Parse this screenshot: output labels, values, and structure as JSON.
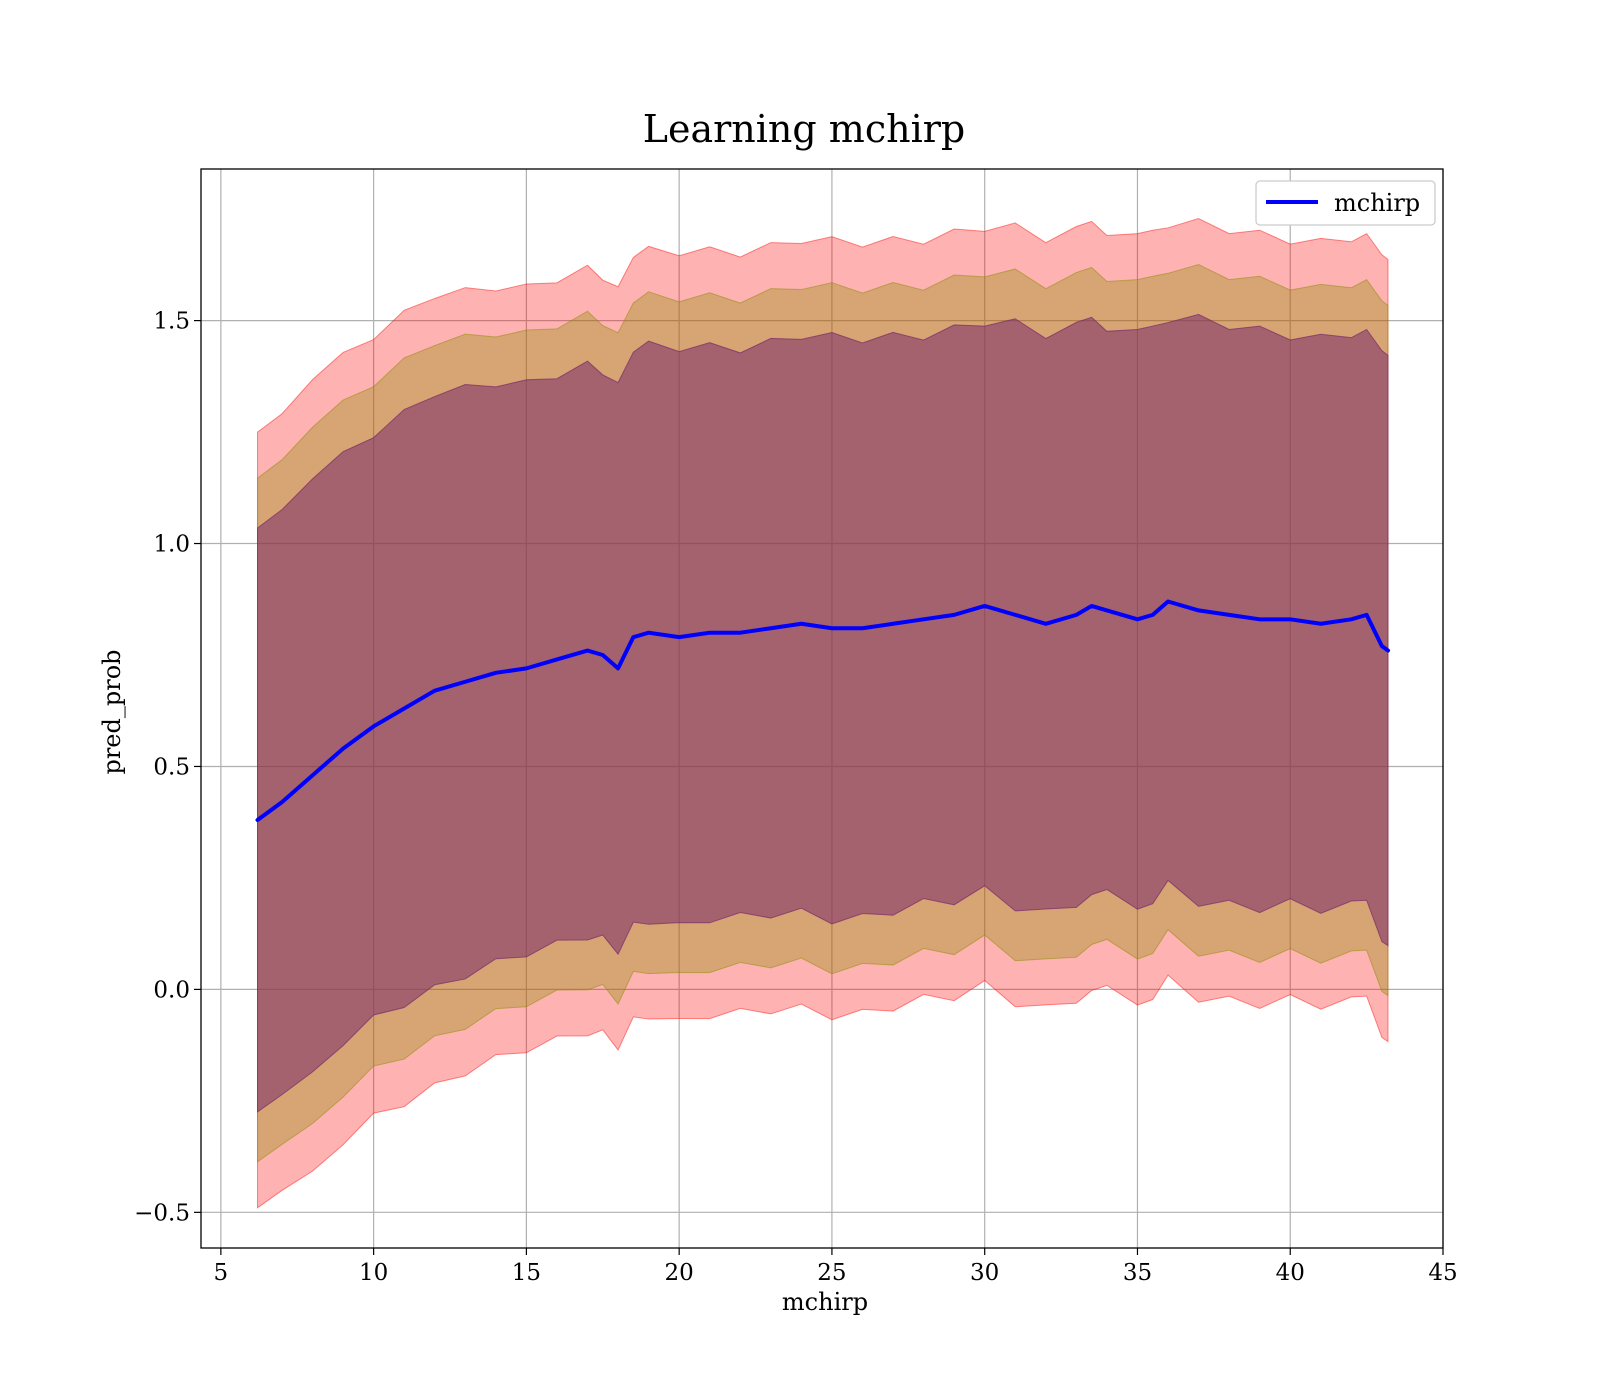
{
  "chart_data": {
    "type": "line",
    "title": "Learning mchirp",
    "xlabel": "mchirp",
    "ylabel": "pred_prob",
    "xlim": [
      4.35,
      45
    ],
    "ylim": [
      -0.58,
      1.84
    ],
    "xticks": [
      5,
      10,
      15,
      20,
      25,
      30,
      35,
      40,
      45
    ],
    "xtick_labels": [
      "5",
      "10",
      "15",
      "20",
      "25",
      "30",
      "35",
      "40",
      "45"
    ],
    "yticks": [
      -0.5,
      0.0,
      0.5,
      1.0,
      1.5
    ],
    "ytick_labels": [
      "−0.5",
      "0.0",
      "0.5",
      "1.0",
      "1.5"
    ],
    "grid": true,
    "legend": {
      "position": "upper right",
      "entries": [
        "mchirp"
      ]
    },
    "x": [
      6.2,
      7,
      8,
      9,
      10,
      11,
      12,
      13,
      14,
      15,
      16,
      17,
      17.5,
      18,
      18.5,
      19,
      20,
      21,
      22,
      23,
      24,
      25,
      26,
      27,
      28,
      29,
      30,
      31,
      32,
      33,
      33.5,
      34,
      35,
      35.5,
      36,
      37,
      38,
      39,
      40,
      41,
      42,
      42.5,
      43,
      43.2
    ],
    "series": [
      {
        "name": "mchirp",
        "color": "#0000ff",
        "values": [
          0.38,
          0.42,
          0.48,
          0.54,
          0.59,
          0.63,
          0.67,
          0.69,
          0.71,
          0.72,
          0.74,
          0.76,
          0.75,
          0.72,
          0.79,
          0.8,
          0.79,
          0.8,
          0.8,
          0.81,
          0.82,
          0.81,
          0.81,
          0.82,
          0.83,
          0.84,
          0.86,
          0.84,
          0.82,
          0.84,
          0.86,
          0.85,
          0.83,
          0.84,
          0.87,
          0.85,
          0.84,
          0.83,
          0.83,
          0.82,
          0.83,
          0.84,
          0.77,
          0.76
        ]
      }
    ],
    "bands": [
      {
        "color": "#ff0000",
        "opacity": 0.3,
        "sigma": 1.0
      },
      {
        "color": "#8b8b00",
        "opacity": 0.35,
        "sigma": 0.88
      },
      {
        "color": "#7a2a6a",
        "opacity": 0.55,
        "sigma": 0.75
      }
    ],
    "upper_outer": [
      1.24,
      1.28,
      1.37,
      1.43,
      1.47,
      1.52,
      1.55,
      1.56,
      1.57,
      1.58,
      1.6,
      1.62,
      1.6,
      1.58,
      1.64,
      1.65,
      1.65,
      1.66,
      1.66,
      1.67,
      1.68,
      1.67,
      1.67,
      1.68,
      1.69,
      1.7,
      1.71,
      1.7,
      1.68,
      1.7,
      1.72,
      1.71,
      1.69,
      1.7,
      1.72,
      1.71,
      1.7,
      1.69,
      1.69,
      1.68,
      1.69,
      1.7,
      1.63,
      1.62
    ]
  }
}
